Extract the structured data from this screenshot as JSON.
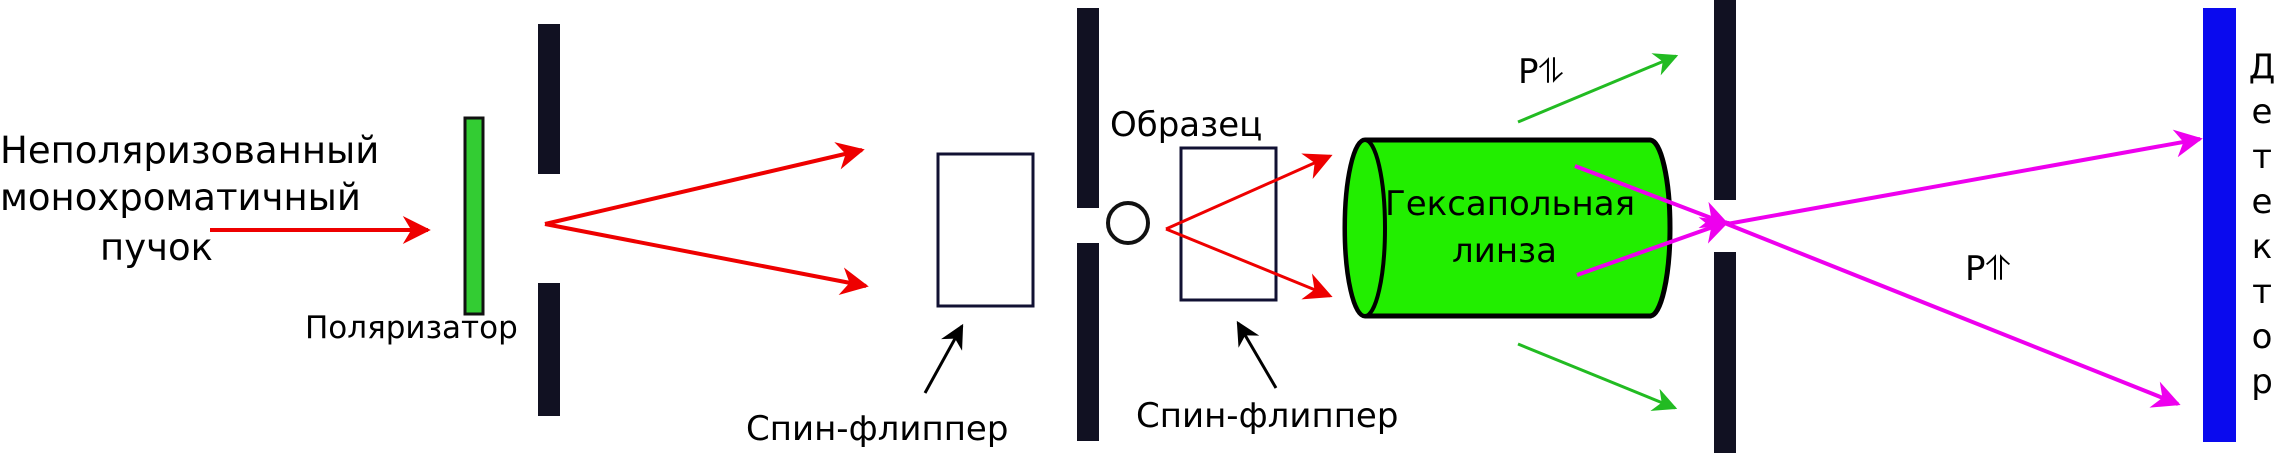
{
  "labels": {
    "beam_line1": "Неполяризованный",
    "beam_line2": "монохроматичный",
    "beam_line3": "пучок",
    "polarizer": "Поляризатор",
    "spin_flipper_1": "Спин-флиппер",
    "spin_flipper_2": "Спин-флиппер",
    "sample": "Образец",
    "lens_line1": "Гексапольная",
    "lens_line2": "линза",
    "state_up_down": "P⥮",
    "state_up_up": "P⥣",
    "detector": [
      "Д",
      "е",
      "т",
      "е",
      "к",
      "т",
      "о",
      "р"
    ]
  },
  "colors": {
    "beam_unpolarized": "#ee0000",
    "beam_after_sample": "#ee0000",
    "beam_defocused": "#22bb22",
    "beam_focused": "#ee00ee",
    "polarizer_fill": "#33cc33",
    "lens_fill": "#22ee00",
    "slit": "#111122",
    "detector": "#0a0aee",
    "frame_stroke": "#111133"
  }
}
